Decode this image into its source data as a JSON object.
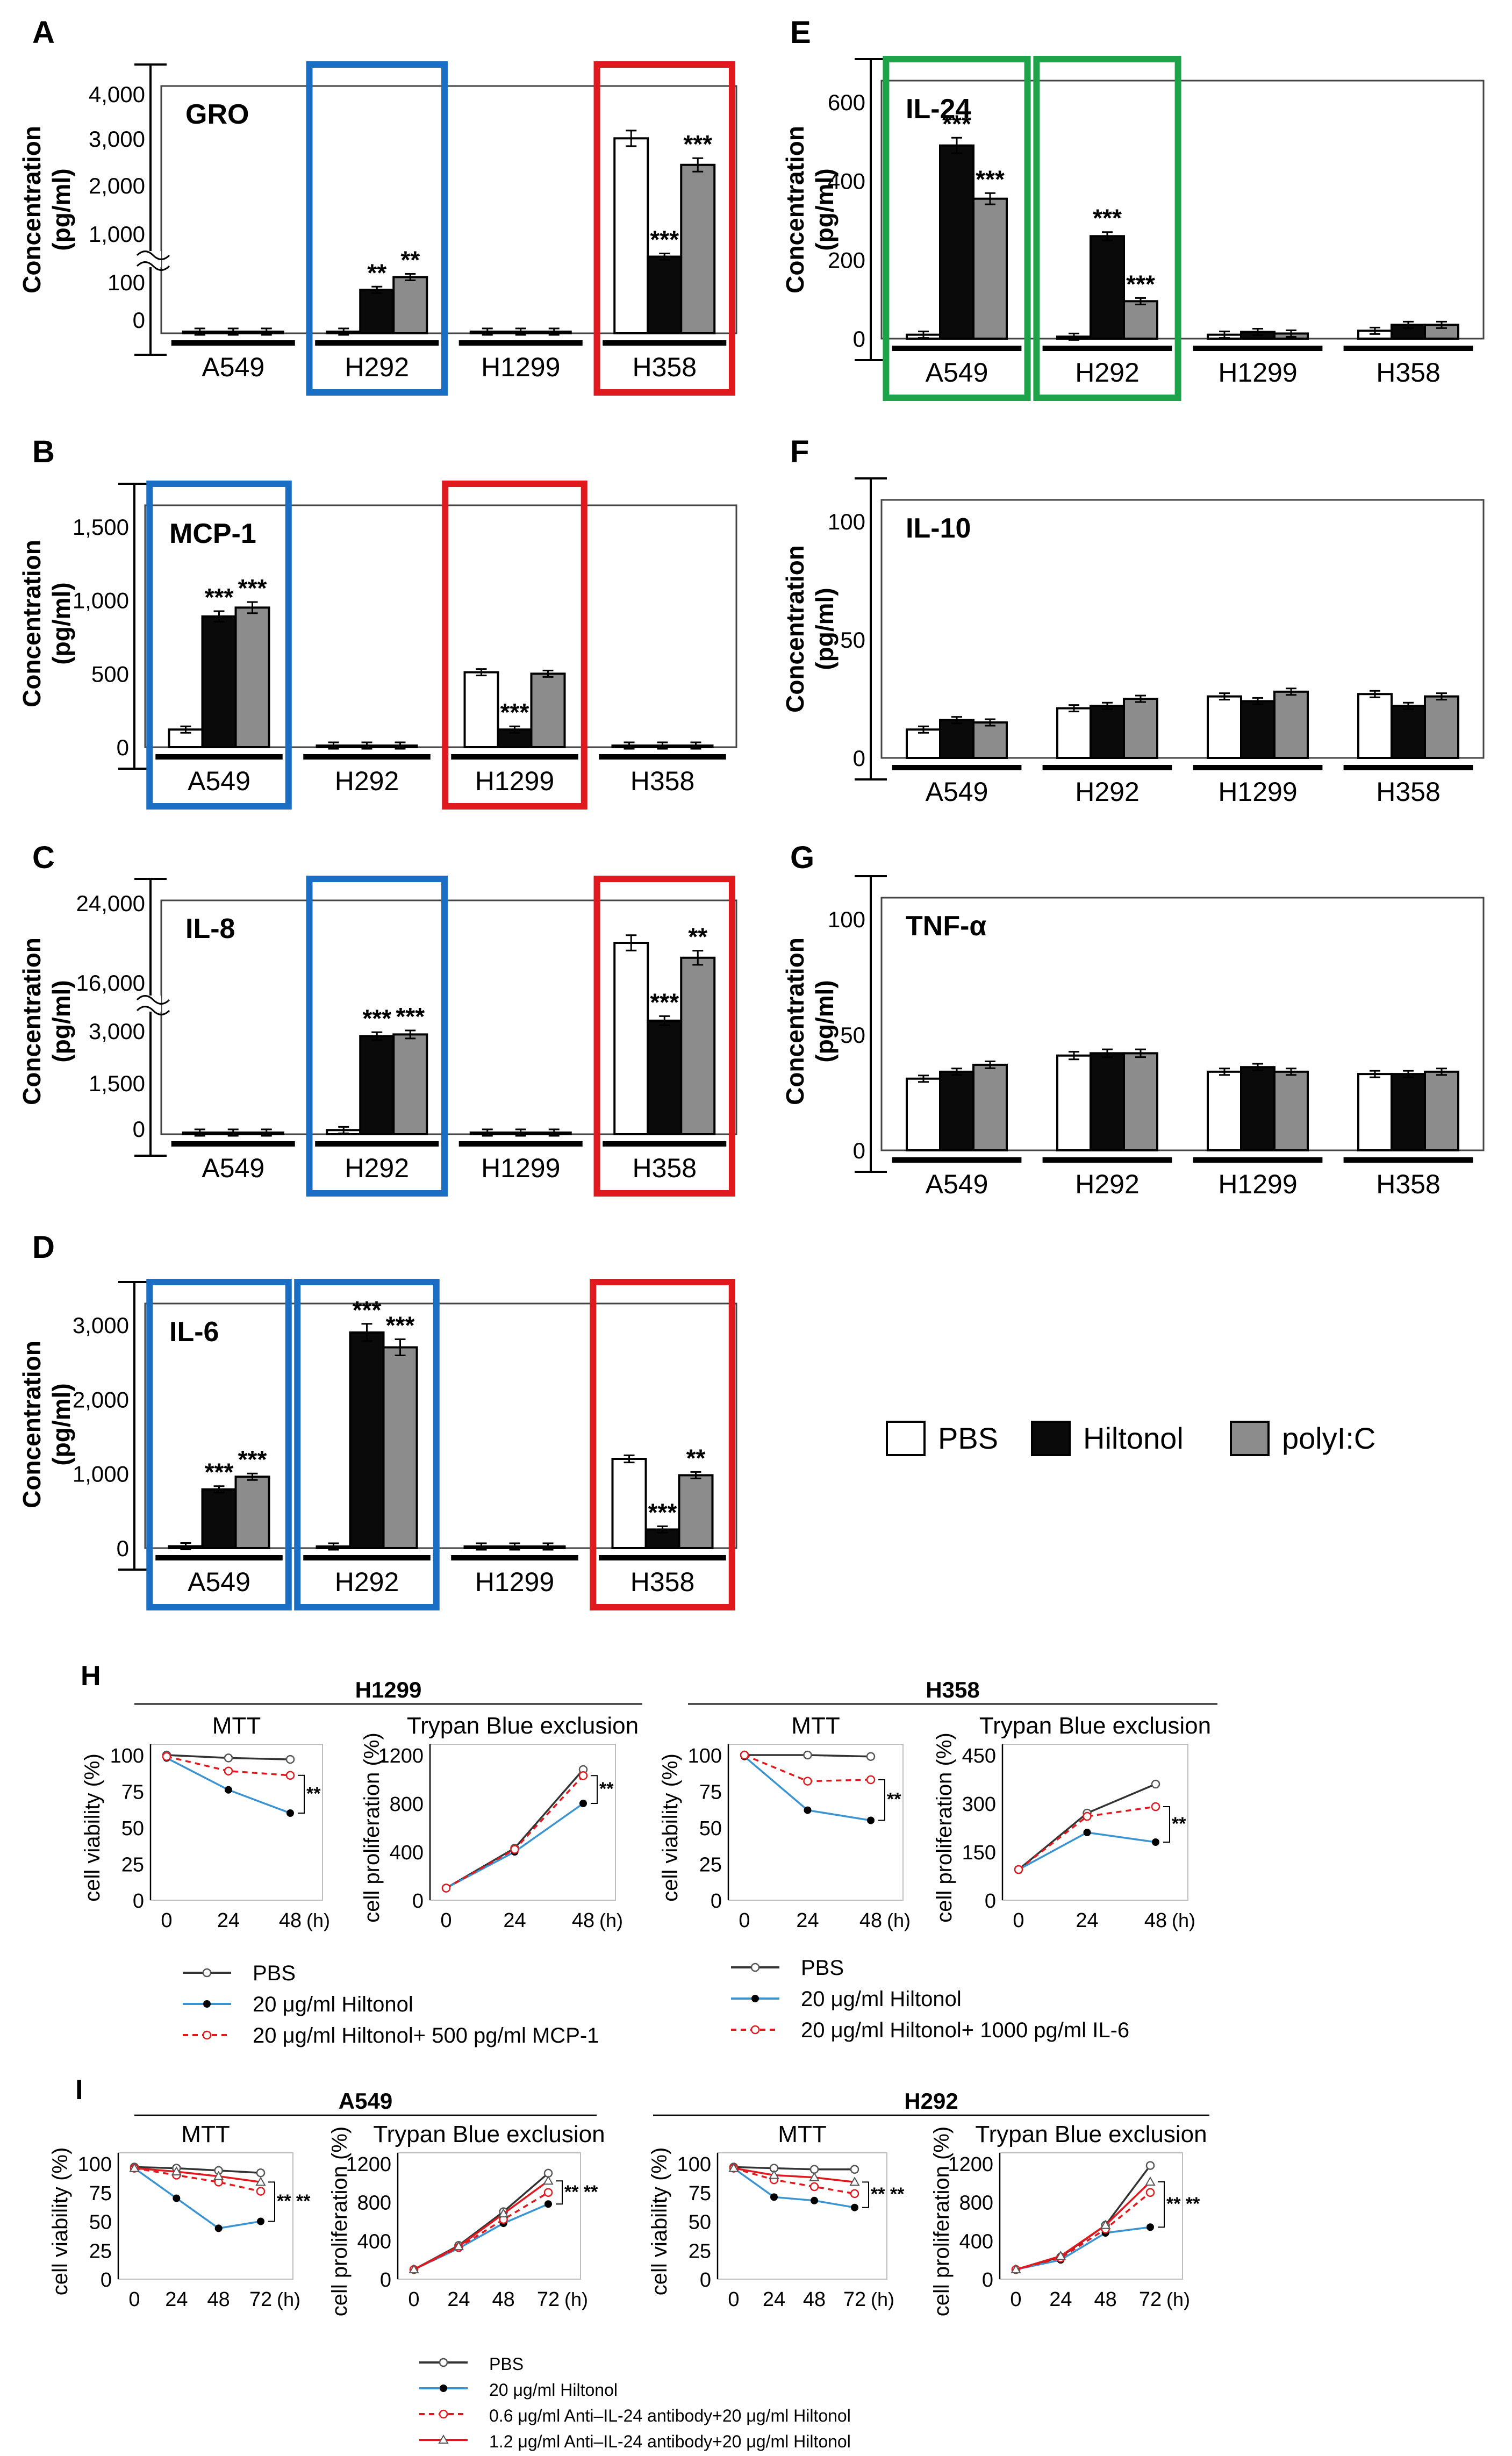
{
  "figure": {
    "bar_legend": [
      {
        "label": "PBS",
        "color": "#ffffff"
      },
      {
        "label": "Hiltonol",
        "color": "#0a0a0a"
      },
      {
        "label": "polyI:C",
        "color": "#8c8c8c"
      }
    ]
  },
  "chart_data": [
    {
      "panel": "A",
      "title": "GRO",
      "type": "bar",
      "ylabel": "Concentration\n(pg/ml)",
      "categories": [
        "A549",
        "H292",
        "H1299",
        "H358"
      ],
      "yticks": [
        "4,000",
        "3,000",
        "2,000",
        "1,000",
        "100",
        "0"
      ],
      "axis_break": true,
      "series": [
        {
          "name": "PBS",
          "values": [
            0,
            0,
            2,
            3050
          ]
        },
        {
          "name": "Hiltonol",
          "values": [
            0,
            85,
            3,
            150
          ]
        },
        {
          "name": "polyI:C",
          "values": [
            3,
            110,
            2,
            2480
          ]
        }
      ],
      "significance": [
        [
          "",
          "",
          "",
          ""
        ],
        [
          "",
          "**",
          "",
          "***"
        ],
        [
          "",
          "**",
          "",
          "***"
        ]
      ],
      "highlight": [
        {
          "category": "H292",
          "color": "blue"
        },
        {
          "category": "H358",
          "color": "red"
        }
      ]
    },
    {
      "panel": "B",
      "title": "MCP-1",
      "type": "bar",
      "ylabel": "Concentration\n(pg/ml)",
      "categories": [
        "A549",
        "H292",
        "H1299",
        "H358"
      ],
      "yticks": [
        "1,500",
        "1,000",
        "500",
        "0"
      ],
      "ylim": [
        0,
        1500
      ],
      "series": [
        {
          "name": "PBS",
          "values": [
            120,
            3,
            510,
            8
          ]
        },
        {
          "name": "Hiltonol",
          "values": [
            890,
            3,
            120,
            6
          ]
        },
        {
          "name": "polyI:C",
          "values": [
            950,
            2,
            500,
            5
          ]
        }
      ],
      "significance": [
        [
          "",
          "",
          "",
          ""
        ],
        [
          "***",
          "",
          "***",
          ""
        ],
        [
          "***",
          "",
          "",
          ""
        ]
      ],
      "highlight": [
        {
          "category": "A549",
          "color": "blue"
        },
        {
          "category": "H1299",
          "color": "red"
        }
      ]
    },
    {
      "panel": "C",
      "title": "IL-8",
      "type": "bar",
      "ylabel": "Concentration\n(pg/ml)",
      "categories": [
        "A549",
        "H292",
        "H1299",
        "H358"
      ],
      "yticks": [
        "24,000",
        "16,000",
        "3,000",
        "1,500",
        "0"
      ],
      "axis_break": true,
      "series": [
        {
          "name": "PBS",
          "values": [
            5,
            120,
            5,
            20000
          ]
        },
        {
          "name": "Hiltonol",
          "values": [
            5,
            2850,
            4,
            3300
          ]
        },
        {
          "name": "polyI:C",
          "values": [
            5,
            2900,
            4,
            18500
          ]
        }
      ],
      "significance": [
        [
          "",
          "",
          "",
          ""
        ],
        [
          "",
          "***",
          "",
          "***"
        ],
        [
          "",
          "***",
          "",
          "**"
        ]
      ],
      "highlight": [
        {
          "category": "H292",
          "color": "blue"
        },
        {
          "category": "H358",
          "color": "red"
        }
      ]
    },
    {
      "panel": "D",
      "title": "IL-6",
      "type": "bar",
      "ylabel": "Concentration\n(pg/ml)",
      "categories": [
        "A549",
        "H292",
        "H1299",
        "H358"
      ],
      "yticks": [
        "3,000",
        "2,000",
        "1,000",
        "0"
      ],
      "ylim": [
        0,
        3000
      ],
      "series": [
        {
          "name": "PBS",
          "values": [
            25,
            20,
            15,
            1200
          ]
        },
        {
          "name": "Hiltonol",
          "values": [
            790,
            2900,
            12,
            250
          ]
        },
        {
          "name": "polyI:C",
          "values": [
            960,
            2700,
            12,
            980
          ]
        }
      ],
      "significance": [
        [
          "",
          "",
          "",
          ""
        ],
        [
          "***",
          "***",
          "",
          "***"
        ],
        [
          "***",
          "***",
          "",
          "**"
        ]
      ],
      "highlight": [
        {
          "category": "A549",
          "color": "blue"
        },
        {
          "category": "H292",
          "color": "blue"
        },
        {
          "category": "H358",
          "color": "red"
        }
      ]
    },
    {
      "panel": "E",
      "title": "IL-24",
      "type": "bar",
      "ylabel": "Concentration\n(pg/ml)",
      "categories": [
        "A549",
        "H292",
        "H1299",
        "H358"
      ],
      "yticks": [
        "600",
        "400",
        "200",
        "0"
      ],
      "ylim": [
        0,
        600
      ],
      "series": [
        {
          "name": "PBS",
          "values": [
            10,
            5,
            10,
            20
          ]
        },
        {
          "name": "Hiltonol",
          "values": [
            490,
            260,
            17,
            35
          ]
        },
        {
          "name": "polyI:C",
          "values": [
            355,
            95,
            13,
            35
          ]
        }
      ],
      "significance": [
        [
          "",
          "",
          "",
          ""
        ],
        [
          "***",
          "***",
          "",
          ""
        ],
        [
          "***",
          "***",
          "",
          ""
        ]
      ],
      "highlight": [
        {
          "category": "A549",
          "color": "green"
        },
        {
          "category": "H292",
          "color": "green"
        }
      ]
    },
    {
      "panel": "F",
      "title": "IL-10",
      "type": "bar",
      "ylabel": "Concentration\n(pg/ml)",
      "categories": [
        "A549",
        "H292",
        "H1299",
        "H358"
      ],
      "yticks": [
        "100",
        "50",
        "0"
      ],
      "ylim": [
        0,
        100
      ],
      "series": [
        {
          "name": "PBS",
          "values": [
            12,
            21,
            26,
            27
          ]
        },
        {
          "name": "Hiltonol",
          "values": [
            16,
            22,
            24,
            22
          ]
        },
        {
          "name": "polyI:C",
          "values": [
            15,
            25,
            28,
            26
          ]
        }
      ]
    },
    {
      "panel": "G",
      "title": "TNF-α",
      "type": "bar",
      "ylabel": "Concentration\n(pg/ml)",
      "categories": [
        "A549",
        "H292",
        "H1299",
        "H358"
      ],
      "yticks": [
        "100",
        "50",
        "0"
      ],
      "ylim": [
        0,
        100
      ],
      "series": [
        {
          "name": "PBS",
          "values": [
            31,
            41,
            34,
            33
          ]
        },
        {
          "name": "Hiltonol",
          "values": [
            34,
            42,
            36,
            33
          ]
        },
        {
          "name": "polyI:C",
          "values": [
            37,
            42,
            34,
            34
          ]
        }
      ]
    },
    {
      "panel": "H",
      "type": "line",
      "cell_line": "H1299",
      "title": "MTT",
      "ylabel": "cell viability (%)",
      "x": [
        0,
        24,
        48
      ],
      "xticks": [
        "0",
        "24",
        "48"
      ],
      "xunit": "(h)",
      "yticks": [
        "100",
        "75",
        "50",
        "25",
        "0"
      ],
      "ylim": [
        0,
        100
      ],
      "series": [
        {
          "name": "PBS",
          "values": [
            100,
            98,
            97
          ]
        },
        {
          "name": "20 μg/ml Hiltonol",
          "values": [
            98,
            76,
            60
          ]
        },
        {
          "name": "20 μg/ml Hiltonol+ 500 pg/ml MCP-1",
          "values": [
            99,
            89,
            86
          ]
        }
      ],
      "significance": "**"
    },
    {
      "panel": "H",
      "type": "line",
      "cell_line": "H1299",
      "title": "Trypan Blue exclusion",
      "ylabel": "cell proliferation (%)",
      "x": [
        0,
        24,
        48
      ],
      "xticks": [
        "0",
        "24",
        "48"
      ],
      "xunit": "(h)",
      "yticks": [
        "1200",
        "800",
        "400",
        "0"
      ],
      "ylim": [
        0,
        1200
      ],
      "series": [
        {
          "name": "PBS",
          "values": [
            100,
            430,
            1080
          ]
        },
        {
          "name": "20 μg/ml Hiltonol",
          "values": [
            100,
            400,
            800
          ]
        },
        {
          "name": "20 μg/ml Hiltonol+ 500 pg/ml MCP-1",
          "values": [
            100,
            420,
            1030
          ]
        }
      ],
      "significance": "**"
    },
    {
      "panel": "H",
      "type": "line",
      "cell_line": "H358",
      "title": "MTT",
      "ylabel": "cell viability (%)",
      "x": [
        0,
        24,
        48
      ],
      "xticks": [
        "0",
        "24",
        "48"
      ],
      "xunit": "(h)",
      "yticks": [
        "100",
        "75",
        "50",
        "25",
        "0"
      ],
      "ylim": [
        0,
        100
      ],
      "series": [
        {
          "name": "PBS",
          "values": [
            100,
            100,
            99
          ]
        },
        {
          "name": "20 μg/ml Hiltonol",
          "values": [
            99,
            62,
            55
          ]
        },
        {
          "name": "20 μg/ml Hiltonol+ 1000 pg/ml IL-6",
          "values": [
            100,
            82,
            83
          ]
        }
      ],
      "significance": "**"
    },
    {
      "panel": "H",
      "type": "line",
      "cell_line": "H358",
      "title": "Trypan Blue exclusion",
      "ylabel": "cell proliferation (%)",
      "x": [
        0,
        24,
        48
      ],
      "xticks": [
        "0",
        "24",
        "48"
      ],
      "xunit": "(h)",
      "yticks": [
        "450",
        "300",
        "150",
        "0"
      ],
      "ylim": [
        0,
        450
      ],
      "series": [
        {
          "name": "PBS",
          "values": [
            95,
            270,
            360
          ]
        },
        {
          "name": "20 μg/ml Hiltonol",
          "values": [
            95,
            210,
            180
          ]
        },
        {
          "name": "20 μg/ml Hiltonol+ 1000 pg/ml IL-6",
          "values": [
            95,
            260,
            290
          ]
        }
      ],
      "significance": "**"
    },
    {
      "panel": "I",
      "type": "line",
      "cell_line": "A549",
      "title": "MTT",
      "ylabel": "cell viability (%)",
      "x": [
        0,
        24,
        48,
        72
      ],
      "xticks": [
        "0",
        "24",
        "48",
        "72"
      ],
      "xunit": "(h)",
      "yticks": [
        "100",
        "75",
        "50",
        "25",
        "0"
      ],
      "ylim": [
        0,
        100
      ],
      "series": [
        {
          "name": "PBS",
          "values": [
            97,
            96,
            94,
            92
          ]
        },
        {
          "name": "20 μg/ml Hiltonol",
          "values": [
            96,
            70,
            44,
            50
          ]
        },
        {
          "name": "0.6 μg/ml Anti–IL-24 antibody+20 μg/ml Hiltonol",
          "values": [
            96,
            90,
            84,
            76
          ]
        },
        {
          "name": "1.2 μg/ml Anti–IL-24 antibody+20 μg/ml Hiltonol",
          "values": [
            96,
            93,
            89,
            84
          ]
        }
      ],
      "significance": "** **"
    },
    {
      "panel": "I",
      "type": "line",
      "cell_line": "A549",
      "title": "Trypan Blue exclusion",
      "ylabel": "cell proliferation (%)",
      "x": [
        0,
        24,
        48,
        72
      ],
      "xticks": [
        "0",
        "24",
        "48",
        "72"
      ],
      "xunit": "(h)",
      "yticks": [
        "1200",
        "800",
        "400",
        "0"
      ],
      "ylim": [
        0,
        1200
      ],
      "series": [
        {
          "name": "PBS",
          "values": [
            100,
            350,
            700,
            1100
          ]
        },
        {
          "name": "20 μg/ml Hiltonol",
          "values": [
            100,
            320,
            580,
            780
          ]
        },
        {
          "name": "0.6 μg/ml Anti–IL-24 antibody+20 μg/ml Hiltonol",
          "values": [
            100,
            330,
            620,
            900
          ]
        },
        {
          "name": "1.2 μg/ml Anti–IL-24 antibody+20 μg/ml Hiltonol",
          "values": [
            100,
            340,
            680,
            1020
          ]
        }
      ],
      "significance": "** **"
    },
    {
      "panel": "I",
      "type": "line",
      "cell_line": "H292",
      "title": "MTT",
      "ylabel": "cell viability (%)",
      "x": [
        0,
        24,
        48,
        72
      ],
      "xticks": [
        "0",
        "24",
        "48",
        "72"
      ],
      "xunit": "(h)",
      "yticks": [
        "100",
        "75",
        "50",
        "25",
        "0"
      ],
      "ylim": [
        0,
        100
      ],
      "series": [
        {
          "name": "PBS",
          "values": [
            97,
            96,
            95,
            95
          ]
        },
        {
          "name": "20 μg/ml Hiltonol",
          "values": [
            96,
            71,
            68,
            62
          ]
        },
        {
          "name": "0.6 μg/ml Anti–IL-24 antibody+20 μg/ml Hiltonol",
          "values": [
            96,
            86,
            80,
            74
          ]
        },
        {
          "name": "1.2 μg/ml Anti–IL-24 antibody+20 μg/ml Hiltonol",
          "values": [
            96,
            90,
            88,
            84
          ]
        }
      ],
      "significance": "** **"
    },
    {
      "panel": "I",
      "type": "line",
      "cell_line": "H292",
      "title": "Trypan Blue exclusion",
      "ylabel": "cell proliferation (%)",
      "x": [
        0,
        24,
        48,
        72
      ],
      "xticks": [
        "0",
        "24",
        "48",
        "72"
      ],
      "xunit": "(h)",
      "yticks": [
        "1200",
        "800",
        "400",
        "0"
      ],
      "ylim": [
        0,
        1200
      ],
      "series": [
        {
          "name": "PBS",
          "values": [
            100,
            230,
            560,
            1180
          ]
        },
        {
          "name": "20 μg/ml Hiltonol",
          "values": [
            100,
            200,
            480,
            540
          ]
        },
        {
          "name": "0.6 μg/ml Anti–IL-24 antibody+20 μg/ml Hiltonol",
          "values": [
            100,
            220,
            520,
            900
          ]
        },
        {
          "name": "1.2 μg/ml Anti–IL-24 antibody+20 μg/ml Hiltonol",
          "values": [
            100,
            240,
            560,
            1010
          ]
        }
      ],
      "significance": "** **"
    }
  ],
  "line_legends": {
    "H_left": [
      "PBS",
      "20 μg/ml Hiltonol",
      "20 μg/ml Hiltonol+ 500 pg/ml MCP-1"
    ],
    "H_right": [
      "PBS",
      "20 μg/ml Hiltonol",
      "20 μg/ml Hiltonol+ 1000 pg/ml IL-6"
    ],
    "I": [
      "PBS",
      "20 μg/ml Hiltonol",
      "0.6 μg/ml Anti–IL-24 antibody+20 μg/ml Hiltonol",
      "1.2 μg/ml Anti–IL-24 antibody+20 μg/ml Hiltonol"
    ]
  }
}
